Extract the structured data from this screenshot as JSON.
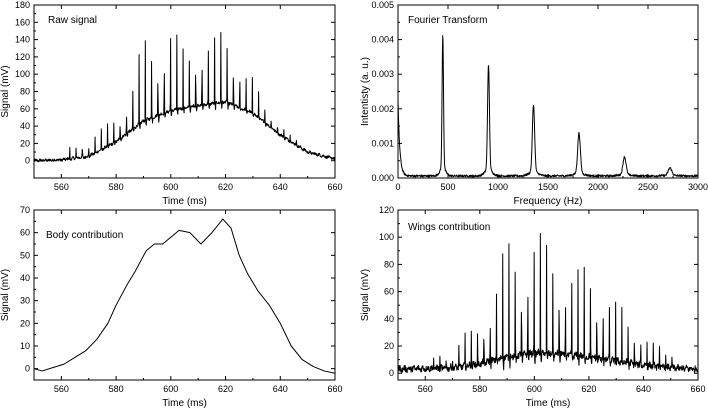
{
  "chart_data": [
    {
      "type": "line",
      "title": "Raw signal",
      "xlabel": "Time (ms)",
      "ylabel": "Signal (mV)",
      "xlim": [
        550,
        660
      ],
      "ylim": [
        -20,
        180
      ],
      "xticks": [
        560,
        580,
        600,
        620,
        640,
        660
      ],
      "yticks": [
        0,
        20,
        40,
        60,
        80,
        100,
        120,
        140,
        160,
        180
      ],
      "series": [
        {
          "kind": "envelope-with-spikes",
          "baseline": {
            "x": [
              550,
              560,
              570,
              580,
              590,
              600,
              610,
              620,
              630,
              640,
              650,
              660
            ],
            "y": [
              0,
              1,
              5,
              22,
              46,
              58,
              64,
              68,
              55,
              30,
              10,
              2
            ]
          },
          "spikes": {
            "period_ms": 2.3,
            "start_ms": 563,
            "end_ms": 648,
            "peaks": {
              "x": [
                563,
                570,
                580,
                585,
                590,
                595,
                600,
                605,
                610,
                615,
                620,
                625,
                630,
                635,
                640,
                648
              ],
              "y": [
                15,
                25,
                52,
                75,
                145,
                135,
                163,
                128,
                150,
                140,
                158,
                118,
                95,
                62,
                42,
                15
              ]
            }
          }
        }
      ]
    },
    {
      "type": "line",
      "title": "Fourier Transform",
      "xlabel": "Frequency (Hz)",
      "ylabel": "Intentisty (a. u.)",
      "xlim": [
        0,
        3000
      ],
      "ylim": [
        0,
        0.005
      ],
      "xticks": [
        0,
        500,
        1000,
        1500,
        2000,
        2500,
        3000
      ],
      "yticks": [
        0.0,
        0.001,
        0.002,
        0.003,
        0.004,
        0.005
      ],
      "ytick_labels": [
        "0.000",
        "0.001",
        "0.002",
        "0.003",
        "0.004",
        "0.005"
      ],
      "series": [
        {
          "kind": "spectrum",
          "noise_floor": 6e-05,
          "low_freq_rise": 0.0022,
          "peaks": [
            {
              "x": 448,
              "y": 0.00385,
              "width": 10
            },
            {
              "x": 905,
              "y": 0.00305,
              "width": 13
            },
            {
              "x": 1355,
              "y": 0.00195,
              "width": 16
            },
            {
              "x": 1810,
              "y": 0.00117,
              "width": 19
            },
            {
              "x": 2265,
              "y": 0.00052,
              "width": 22
            },
            {
              "x": 2720,
              "y": 0.00022,
              "width": 25
            }
          ]
        }
      ]
    },
    {
      "type": "line",
      "title": "Body contribution",
      "xlabel": "Time (ms)",
      "ylabel": "Signal (mV)",
      "xlim": [
        550,
        660
      ],
      "ylim": [
        -5,
        70
      ],
      "xticks": [
        560,
        580,
        600,
        620,
        640,
        660
      ],
      "yticks": [
        0,
        10,
        20,
        30,
        40,
        50,
        60,
        70
      ],
      "series": [
        {
          "x": [
            550,
            553,
            557,
            561,
            565,
            569,
            573,
            577,
            580,
            584,
            587,
            591,
            594,
            597,
            600,
            603,
            607,
            611,
            615,
            619,
            622,
            625,
            628,
            632,
            636,
            640,
            644,
            648,
            652,
            656,
            660
          ],
          "y": [
            0,
            -1,
            0.5,
            2,
            5,
            8,
            13,
            20,
            28,
            37,
            43,
            52,
            55,
            55,
            58,
            61,
            60,
            55,
            60,
            66,
            62,
            50,
            42,
            34,
            28,
            20,
            10,
            4,
            1,
            -1,
            -2
          ]
        }
      ]
    },
    {
      "type": "line",
      "title": "Wings contribution",
      "xlabel": "Time (ms)",
      "ylabel": "Signal (mV)",
      "xlim": [
        550,
        660
      ],
      "ylim": [
        -5,
        120
      ],
      "xticks": [
        560,
        580,
        600,
        620,
        640,
        660
      ],
      "yticks": [
        0,
        20,
        40,
        60,
        80,
        100,
        120
      ],
      "series": [
        {
          "kind": "noise-with-spikes",
          "baseline": {
            "x": [
              550,
              570,
              580,
              590,
              600,
              610,
              620,
              630,
              640,
              650,
              660
            ],
            "y": [
              3,
              4,
              7,
              12,
              15,
              14,
              12,
              9,
              6,
              4,
              3
            ]
          },
          "spikes": {
            "period_ms": 2.3,
            "start_ms": 563,
            "end_ms": 651,
            "peaks": {
              "x": [
                563,
                570,
                580,
                585,
                590,
                595,
                600,
                605,
                610,
                615,
                620,
                625,
                630,
                635,
                640,
                645,
                651
              ],
              "y": [
                12,
                18,
                40,
                60,
                104,
                85,
                110,
                95,
                82,
                80,
                80,
                68,
                55,
                42,
                30,
                22,
                18
              ]
            }
          }
        }
      ]
    }
  ]
}
